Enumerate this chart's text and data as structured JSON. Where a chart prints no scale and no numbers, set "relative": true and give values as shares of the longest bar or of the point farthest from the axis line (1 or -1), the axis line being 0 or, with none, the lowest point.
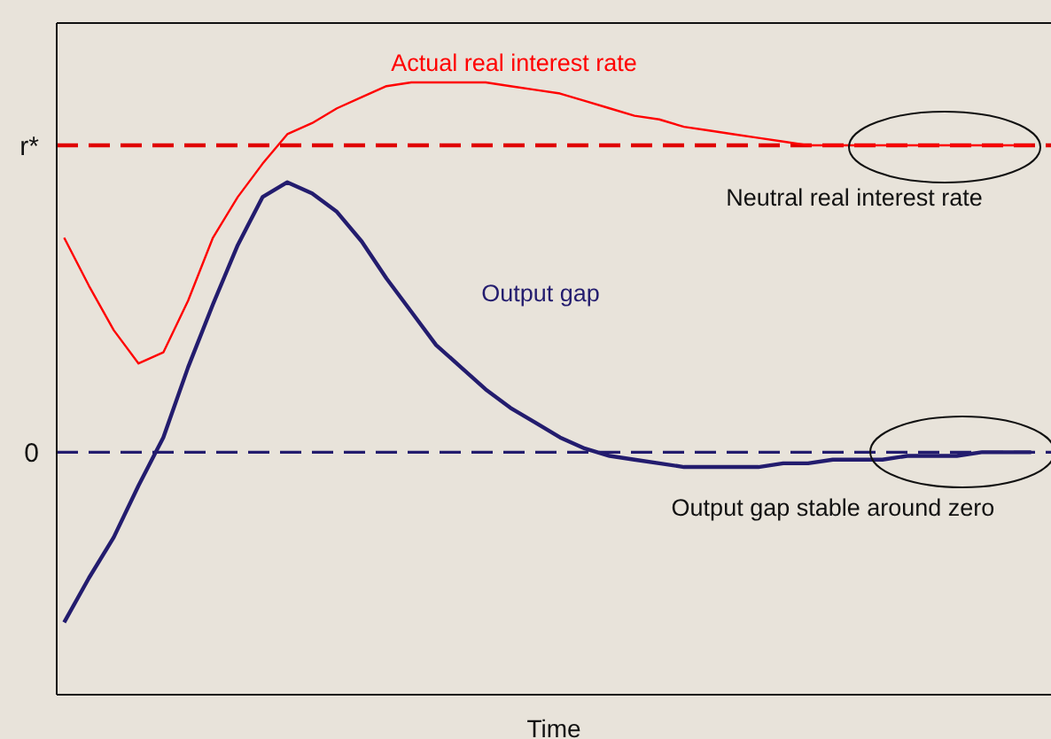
{
  "chart_data": {
    "type": "line",
    "relative": true,
    "xlabel": "Time",
    "grid": false,
    "legend": false,
    "marker": "none",
    "line_style": "solid",
    "categories": [
      null,
      null,
      null,
      null,
      null,
      null,
      null,
      null,
      null,
      null,
      null,
      null,
      null,
      null,
      null,
      null,
      null,
      null,
      null,
      null,
      null,
      null,
      null,
      null,
      null,
      null,
      null,
      null,
      null,
      null,
      null,
      null,
      null,
      null,
      null,
      null,
      null,
      null,
      null,
      null
    ],
    "series": [
      {
        "name": "Actual real interest rate",
        "color": "#ff0000",
        "values": [
          0.58,
          0.45,
          0.33,
          0.24,
          0.27,
          0.41,
          0.58,
          0.69,
          0.78,
          0.86,
          0.89,
          0.93,
          0.96,
          0.99,
          1.0,
          1.0,
          1.0,
          1.0,
          0.99,
          0.98,
          0.97,
          0.95,
          0.93,
          0.91,
          0.9,
          0.88,
          0.87,
          0.86,
          0.85,
          0.84,
          0.83,
          0.83,
          0.83,
          0.83,
          0.83,
          0.83,
          0.83,
          0.83,
          0.83,
          0.83
        ]
      },
      {
        "name": "Output gap",
        "color": "#231c6e",
        "values": [
          -0.46,
          -0.34,
          -0.23,
          -0.09,
          0.04,
          0.23,
          0.4,
          0.56,
          0.69,
          0.73,
          0.7,
          0.65,
          0.57,
          0.47,
          0.38,
          0.29,
          0.23,
          0.17,
          0.12,
          0.08,
          0.04,
          0.01,
          -0.01,
          -0.02,
          -0.03,
          -0.04,
          -0.04,
          -0.04,
          -0.04,
          -0.03,
          -0.03,
          -0.02,
          -0.02,
          -0.02,
          -0.01,
          -0.01,
          -0.01,
          0,
          0,
          0
        ]
      }
    ],
    "ref_lines": [
      {
        "axis": "y",
        "value": 0.83,
        "label": "r*",
        "color": "#e00000",
        "line_style": "dashed"
      },
      {
        "axis": "y",
        "value": 0,
        "label": "0",
        "color": "#231c6e",
        "line_style": "dashed"
      }
    ],
    "annotations": [
      "Neutral real interest rate",
      "Output gap stable around zero"
    ]
  }
}
